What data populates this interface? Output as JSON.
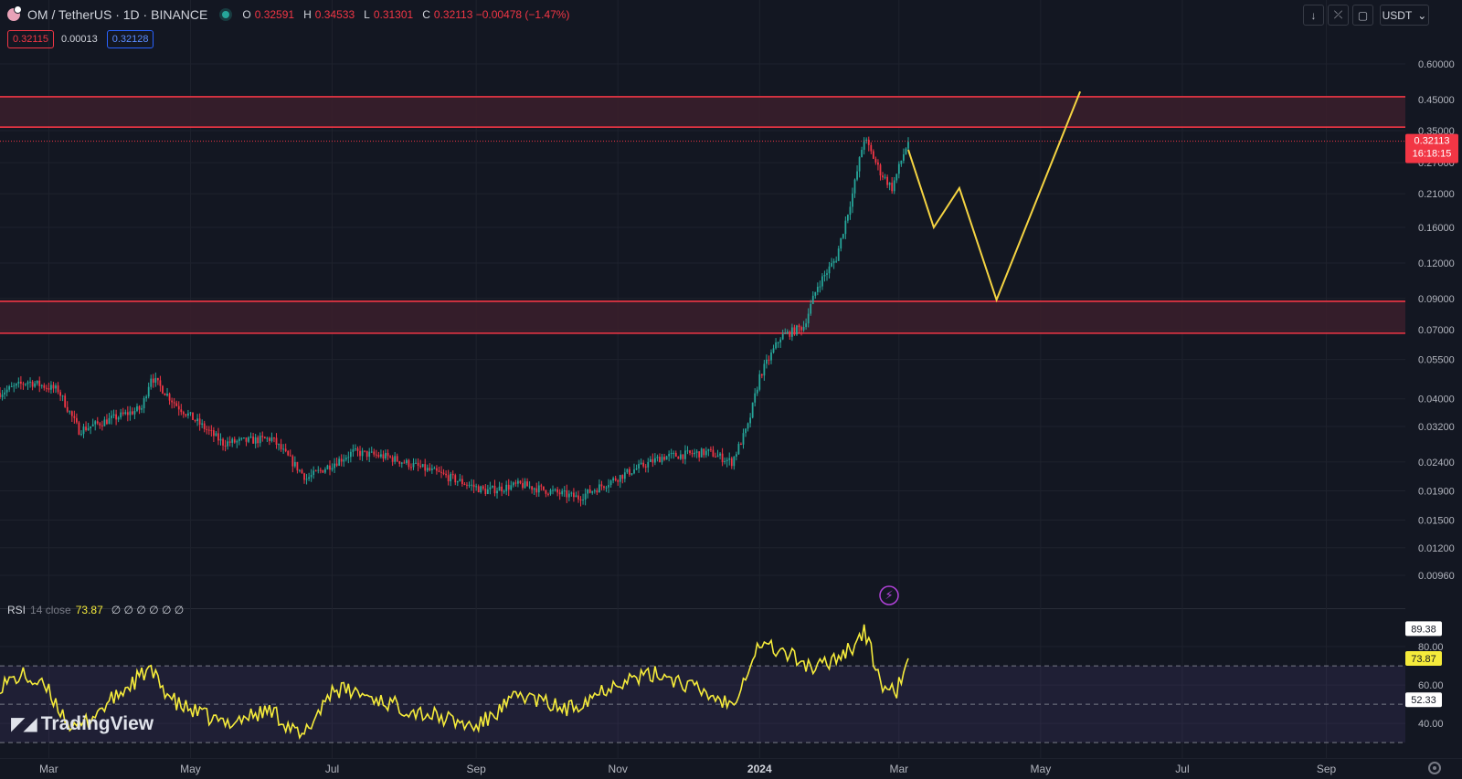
{
  "header": {
    "symbol": "OM / TetherUS · 1D · BINANCE",
    "ohlc": [
      {
        "k": "O",
        "v": "0.32591"
      },
      {
        "k": "H",
        "v": "0.34533"
      },
      {
        "k": "L",
        "v": "0.31301"
      },
      {
        "k": "C",
        "v": "0.32113 −0.00478 (−1.47%)"
      }
    ],
    "sell_price": "0.32115",
    "spread": "0.00013",
    "buy_price": "0.32128",
    "currency": "USDT",
    "currency_caret": "⌄",
    "tools": [
      {
        "name": "download-icon",
        "glyph": "↓"
      },
      {
        "name": "fullscreen-exit-icon",
        "glyph": "⤫"
      },
      {
        "name": "screenshot-icon",
        "glyph": "▢"
      }
    ]
  },
  "rsi_legend": {
    "name": "RSI",
    "params": "14 close",
    "value": "73.87",
    "na": [
      "∅",
      "∅",
      "∅",
      "∅",
      "∅",
      "∅"
    ]
  },
  "watermark": "TradingView",
  "colors": {
    "background": "#131722",
    "up": "#26a69a",
    "down": "#f23645",
    "projection": "#f5d442",
    "rsi_line": "#f5eb3b",
    "zone_fill": "#3b1f2b",
    "zone_line": "#f23645",
    "rsi_band": "#7e57c2"
  },
  "chart_data": [
    {
      "type": "candlestick",
      "title": "OM / TetherUS · 1D · BINANCE",
      "scale": "log",
      "ylim": [
        0.0085,
        0.85
      ],
      "y_ticks": [
        "0.60000",
        "0.45000",
        "0.35000",
        "0.27000",
        "0.21000",
        "0.16000",
        "0.12000",
        "0.09000",
        "0.07000",
        "0.05500",
        "0.04000",
        "0.03200",
        "0.02400",
        "0.01900",
        "0.01500",
        "0.01200",
        "0.00960"
      ],
      "x_range": [
        "2023-02-08",
        "2024-10-05"
      ],
      "x_ticks": [
        {
          "label": "Mar",
          "date": "2023-03-01"
        },
        {
          "label": "May",
          "date": "2023-05-01"
        },
        {
          "label": "Jul",
          "date": "2023-07-01"
        },
        {
          "label": "Sep",
          "date": "2023-09-01"
        },
        {
          "label": "Nov",
          "date": "2023-11-01"
        },
        {
          "label": "2024",
          "date": "2024-01-01",
          "bold": true
        },
        {
          "label": "Mar",
          "date": "2024-03-01"
        },
        {
          "label": "May",
          "date": "2024-05-01"
        },
        {
          "label": "Jul",
          "date": "2024-07-01"
        },
        {
          "label": "Sep",
          "date": "2024-09-01"
        }
      ],
      "close_path": [
        {
          "date": "2023-02-08",
          "close": 0.042
        },
        {
          "date": "2023-02-20",
          "close": 0.046
        },
        {
          "date": "2023-03-05",
          "close": 0.043
        },
        {
          "date": "2023-03-14",
          "close": 0.031
        },
        {
          "date": "2023-03-28",
          "close": 0.034
        },
        {
          "date": "2023-04-10",
          "close": 0.037
        },
        {
          "date": "2023-04-14",
          "close": 0.048
        },
        {
          "date": "2023-04-25",
          "close": 0.038
        },
        {
          "date": "2023-05-15",
          "close": 0.028
        },
        {
          "date": "2023-06-05",
          "close": 0.029
        },
        {
          "date": "2023-06-20",
          "close": 0.021
        },
        {
          "date": "2023-07-10",
          "close": 0.026
        },
        {
          "date": "2023-07-25",
          "close": 0.025
        },
        {
          "date": "2023-08-15",
          "close": 0.022
        },
        {
          "date": "2023-09-05",
          "close": 0.019
        },
        {
          "date": "2023-09-20",
          "close": 0.02
        },
        {
          "date": "2023-10-15",
          "close": 0.018
        },
        {
          "date": "2023-11-05",
          "close": 0.022
        },
        {
          "date": "2023-11-20",
          "close": 0.025
        },
        {
          "date": "2023-12-10",
          "close": 0.026
        },
        {
          "date": "2023-12-20",
          "close": 0.024
        },
        {
          "date": "2023-12-27",
          "close": 0.032
        },
        {
          "date": "2024-01-01",
          "close": 0.048
        },
        {
          "date": "2024-01-10",
          "close": 0.066
        },
        {
          "date": "2024-01-20",
          "close": 0.072
        },
        {
          "date": "2024-01-26",
          "close": 0.1
        },
        {
          "date": "2024-02-03",
          "close": 0.125
        },
        {
          "date": "2024-02-10",
          "close": 0.21
        },
        {
          "date": "2024-02-15",
          "close": 0.33
        },
        {
          "date": "2024-02-22",
          "close": 0.25
        },
        {
          "date": "2024-02-27",
          "close": 0.22
        },
        {
          "date": "2024-03-03",
          "close": 0.29
        },
        {
          "date": "2024-03-05",
          "close": 0.32113
        }
      ],
      "current_price": {
        "value": 0.32113,
        "label": "0.32113",
        "countdown": "16:18:15"
      },
      "resistance_zone": [
        0.36,
        0.46
      ],
      "support_zone": [
        0.068,
        0.088
      ],
      "projection": [
        {
          "date": "2024-03-05",
          "price": 0.3
        },
        {
          "date": "2024-03-16",
          "price": 0.16
        },
        {
          "date": "2024-03-27",
          "price": 0.22
        },
        {
          "date": "2024-04-12",
          "price": 0.089
        },
        {
          "date": "2024-05-18",
          "price": 0.48
        }
      ]
    },
    {
      "type": "line",
      "name": "RSI 14 close",
      "ylim": [
        22,
        100
      ],
      "y_ticks": [
        80,
        60,
        40
      ],
      "bands": [
        30,
        50,
        70
      ],
      "value_labels": [
        {
          "label": "89.38",
          "value": 89.38,
          "fill": "#ffffff",
          "color": "#131722"
        },
        {
          "label": "73.87",
          "value": 73.87,
          "fill": "#f5eb3b",
          "color": "#131722"
        },
        {
          "label": "52.33",
          "value": 52.33,
          "fill": "#ffffff",
          "color": "#131722"
        }
      ],
      "path": [
        {
          "date": "2023-02-08",
          "value": 60
        },
        {
          "date": "2023-02-18",
          "value": 65
        },
        {
          "date": "2023-02-28",
          "value": 58
        },
        {
          "date": "2023-03-12",
          "value": 36
        },
        {
          "date": "2023-03-25",
          "value": 49
        },
        {
          "date": "2023-04-13",
          "value": 68
        },
        {
          "date": "2023-04-25",
          "value": 50
        },
        {
          "date": "2023-05-15",
          "value": 40
        },
        {
          "date": "2023-06-05",
          "value": 47
        },
        {
          "date": "2023-06-18",
          "value": 32
        },
        {
          "date": "2023-07-01",
          "value": 58
        },
        {
          "date": "2023-07-12",
          "value": 56
        },
        {
          "date": "2023-08-01",
          "value": 48
        },
        {
          "date": "2023-08-20",
          "value": 42
        },
        {
          "date": "2023-09-01",
          "value": 38
        },
        {
          "date": "2023-09-20",
          "value": 55
        },
        {
          "date": "2023-10-10",
          "value": 47
        },
        {
          "date": "2023-11-01",
          "value": 62
        },
        {
          "date": "2023-11-20",
          "value": 66
        },
        {
          "date": "2023-12-10",
          "value": 55
        },
        {
          "date": "2023-12-20",
          "value": 50
        },
        {
          "date": "2024-01-01",
          "value": 82
        },
        {
          "date": "2024-01-15",
          "value": 75
        },
        {
          "date": "2024-01-25",
          "value": 68
        },
        {
          "date": "2024-02-10",
          "value": 80
        },
        {
          "date": "2024-02-15",
          "value": 88
        },
        {
          "date": "2024-02-24",
          "value": 56
        },
        {
          "date": "2024-02-29",
          "value": 57
        },
        {
          "date": "2024-03-05",
          "value": 73.87
        }
      ]
    }
  ]
}
